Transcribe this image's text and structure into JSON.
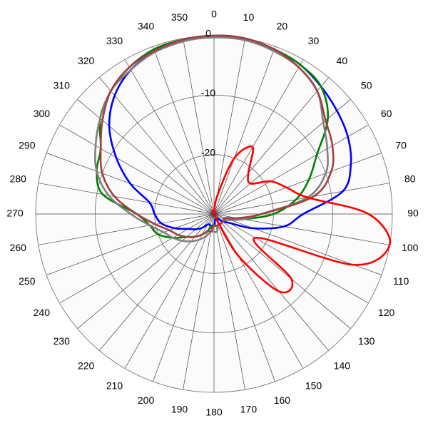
{
  "chart_data": {
    "type": "polar",
    "theta": [
      0,
      10,
      20,
      30,
      40,
      50,
      60,
      70,
      80,
      90,
      100,
      110,
      120,
      130,
      140,
      150,
      160,
      170,
      180,
      190,
      200,
      210,
      220,
      230,
      240,
      250,
      260,
      270,
      280,
      290,
      300,
      310,
      320,
      330,
      340,
      350
    ],
    "rlim": [
      -30,
      0
    ],
    "rticks": [
      -20,
      -10,
      0
    ],
    "series": [
      {
        "name": "blue",
        "color": "#0000ff",
        "values": [
          0,
          0,
          -0.5,
          -1,
          -2,
          -3,
          -4,
          -5.5,
          -8,
          -15,
          -18,
          -23,
          -27,
          -28,
          -29,
          -29,
          -29,
          -29,
          -28,
          -28,
          -28,
          -28,
          -27,
          -26,
          -25,
          -23,
          -21,
          -20,
          -19,
          -15,
          -11,
          -7,
          -4,
          -2,
          -1,
          -0.5
        ]
      },
      {
        "name": "green",
        "color": "#008000",
        "values": [
          0,
          -0.2,
          -0.5,
          -1,
          -2,
          -5,
          -10,
          -13,
          -16,
          -20,
          -25,
          -28,
          -28,
          -28,
          -28,
          -28,
          -28,
          -28,
          -28,
          -28,
          -27,
          -26,
          -25,
          -24,
          -22,
          -20,
          -19,
          -17,
          -11,
          -9,
          -8,
          -5,
          -3,
          -1.5,
          -0.5,
          -0.2
        ]
      },
      {
        "name": "gray",
        "color": "#808080",
        "values": [
          -0.3,
          -0.3,
          -0.8,
          -1.5,
          -3,
          -6,
          -8,
          -10,
          -14,
          -22,
          -25,
          -27,
          -28,
          -28,
          -28,
          -28,
          -28,
          -27,
          -27,
          -27,
          -26,
          -25,
          -24,
          -23,
          -22,
          -21,
          -19,
          -16,
          -12,
          -9,
          -7,
          -5,
          -3,
          -2,
          -1,
          -0.5
        ]
      },
      {
        "name": "brown",
        "color": "#a3403e",
        "values": [
          0,
          0,
          -0.5,
          -1.5,
          -3,
          -5.5,
          -7,
          -9,
          -13,
          -22,
          -26,
          -28,
          -28,
          -28,
          -28,
          -28,
          -28,
          -28,
          -28,
          -27,
          -27,
          -26,
          -25,
          -24,
          -23,
          -22,
          -20,
          -17,
          -13,
          -10,
          -8,
          -5.5,
          -3,
          -1.5,
          -0.8,
          -0.2
        ]
      },
      {
        "name": "red",
        "color": "#ff0000",
        "values": [
          -30,
          -27,
          -20,
          -17,
          -21,
          -22,
          -19,
          -17,
          -14,
          -4,
          0,
          -5,
          -22,
          -13,
          -13,
          -22,
          -30,
          -30,
          -30,
          -30,
          -30,
          -30,
          -30,
          -30,
          -30,
          -30,
          -30,
          -30,
          -30,
          -30,
          -30,
          -30,
          -30,
          -30,
          -30,
          -30
        ]
      }
    ]
  }
}
